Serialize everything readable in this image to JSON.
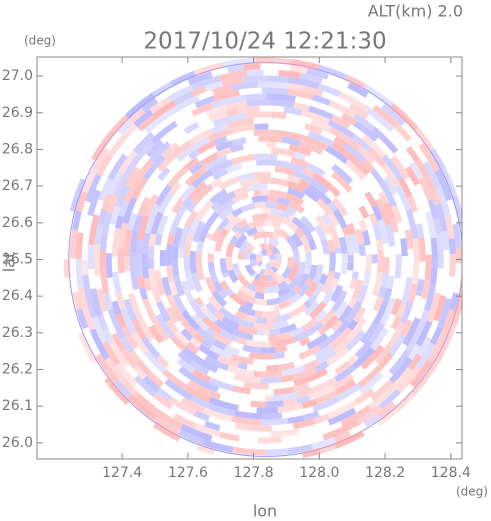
{
  "chart_data": {
    "type": "radar-ppi",
    "title": "2017/10/24 12:21:30",
    "altitude_label": "ALT(km) 2.0",
    "y_unit": "(deg)",
    "x_unit": "(deg)",
    "xlabel": "lon",
    "ylabel": "lat",
    "center": [
      127.837,
      26.5
    ],
    "radius": 0.537,
    "colors": [
      "#ff9c9c",
      "#9c9cff"
    ],
    "xlim": [
      127.141,
      128.434
    ],
    "ylim": [
      25.956,
      27.052
    ],
    "xticks": [
      127.4,
      127.6,
      127.8,
      {
        "value": 128,
        "label": "128.0"
      },
      128.2,
      128.4
    ],
    "yticks": [
      {
        "value": 26,
        "label": "26.0"
      },
      26.1,
      26.2,
      26.3,
      26.4,
      26.5,
      26.6,
      26.7,
      26.8,
      26.9,
      {
        "value": 27,
        "label": "27.0"
      }
    ]
  }
}
